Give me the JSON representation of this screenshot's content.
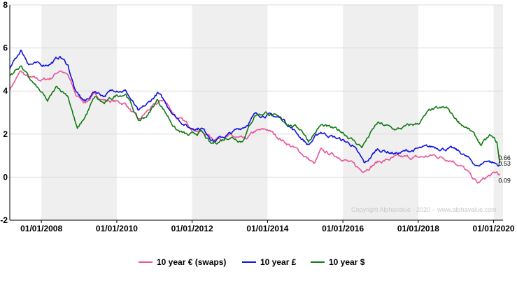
{
  "chart_data": {
    "type": "line",
    "title": "",
    "xlabel": "",
    "ylabel": "",
    "ylim": [
      -2,
      8
    ],
    "y_ticks": [
      "-2",
      "0",
      "2",
      "4",
      "6",
      "8"
    ],
    "x_tick_labels": [
      {
        "date": "2008-01-01",
        "label": "01/01/2008"
      },
      {
        "date": "2010-01-01",
        "label": "01/01/2010"
      },
      {
        "date": "2012-01-01",
        "label": "01/01/2012"
      },
      {
        "date": "2014-01-01",
        "label": "01/01/2014"
      },
      {
        "date": "2016-01-01",
        "label": "01/01/2016"
      },
      {
        "date": "2018-01-01",
        "label": "01/01/2018"
      },
      {
        "date": "2020-01-01",
        "label": "01/01/2020"
      }
    ],
    "xlim": [
      "2007-03-01",
      "2020-04-01"
    ],
    "shaded_bands": [
      [
        "2008-01-01",
        "2010-01-01"
      ],
      [
        "2012-01-01",
        "2014-01-01"
      ],
      [
        "2016-01-01",
        "2018-01-01"
      ],
      [
        "2020-01-01",
        "2020-04-01"
      ]
    ],
    "grid": true,
    "legend_position": "bottom",
    "credit": "Copyright Alphavalue - 2020 – www.alphavalue.com",
    "series": [
      {
        "name": "10 year € (swaps)",
        "color": "#e8559a",
        "end_label": "0.09",
        "points": [
          [
            "2007-03-01",
            4.1
          ],
          [
            "2007-06-15",
            4.9
          ],
          [
            "2007-09-01",
            4.6
          ],
          [
            "2008-01-01",
            4.5
          ],
          [
            "2008-04-01",
            4.6
          ],
          [
            "2008-07-01",
            5.0
          ],
          [
            "2008-09-15",
            4.7
          ],
          [
            "2008-12-01",
            3.8
          ],
          [
            "2009-03-01",
            3.5
          ],
          [
            "2009-06-01",
            3.8
          ],
          [
            "2009-09-01",
            3.6
          ],
          [
            "2010-01-01",
            3.5
          ],
          [
            "2010-04-01",
            3.4
          ],
          [
            "2010-08-01",
            2.6
          ],
          [
            "2010-11-01",
            3.1
          ],
          [
            "2011-04-01",
            3.6
          ],
          [
            "2011-08-01",
            2.8
          ],
          [
            "2011-12-01",
            2.4
          ],
          [
            "2012-04-01",
            2.1
          ],
          [
            "2012-08-01",
            1.8
          ],
          [
            "2013-01-01",
            1.9
          ],
          [
            "2013-06-01",
            1.7
          ],
          [
            "2013-09-01",
            2.1
          ],
          [
            "2014-01-01",
            2.2
          ],
          [
            "2014-06-01",
            1.7
          ],
          [
            "2014-12-01",
            1.1
          ],
          [
            "2015-04-01",
            0.6
          ],
          [
            "2015-06-01",
            1.2
          ],
          [
            "2016-01-01",
            0.9
          ],
          [
            "2016-07-01",
            0.3
          ],
          [
            "2016-12-01",
            0.7
          ],
          [
            "2017-06-01",
            0.9
          ],
          [
            "2018-01-01",
            0.9
          ],
          [
            "2018-06-01",
            1.0
          ],
          [
            "2018-12-01",
            0.8
          ],
          [
            "2019-03-01",
            0.5
          ],
          [
            "2019-08-01",
            -0.3
          ],
          [
            "2019-11-01",
            0.0
          ],
          [
            "2020-02-01",
            0.2
          ],
          [
            "2020-03-01",
            0.09
          ]
        ]
      },
      {
        "name": "10 year £",
        "color": "#1010e0",
        "end_label": "0.53",
        "points": [
          [
            "2007-03-01",
            5.0
          ],
          [
            "2007-06-15",
            5.9
          ],
          [
            "2007-09-01",
            5.3
          ],
          [
            "2008-01-01",
            5.2
          ],
          [
            "2008-04-01",
            5.3
          ],
          [
            "2008-07-01",
            5.6
          ],
          [
            "2008-09-15",
            5.2
          ],
          [
            "2008-12-01",
            3.9
          ],
          [
            "2009-03-01",
            3.5
          ],
          [
            "2009-06-01",
            4.0
          ],
          [
            "2009-09-01",
            3.8
          ],
          [
            "2010-01-01",
            4.1
          ],
          [
            "2010-04-01",
            4.0
          ],
          [
            "2010-08-01",
            3.0
          ],
          [
            "2010-11-01",
            3.4
          ],
          [
            "2011-02-01",
            3.9
          ],
          [
            "2011-08-01",
            2.8
          ],
          [
            "2011-12-01",
            2.3
          ],
          [
            "2012-04-01",
            2.3
          ],
          [
            "2012-08-01",
            1.7
          ],
          [
            "2013-01-01",
            2.0
          ],
          [
            "2013-06-01",
            2.4
          ],
          [
            "2013-09-01",
            2.9
          ],
          [
            "2014-01-01",
            2.9
          ],
          [
            "2014-06-01",
            2.7
          ],
          [
            "2014-12-01",
            1.8
          ],
          [
            "2015-02-01",
            1.5
          ],
          [
            "2015-06-01",
            2.1
          ],
          [
            "2016-01-01",
            1.7
          ],
          [
            "2016-04-01",
            1.5
          ],
          [
            "2016-08-01",
            0.6
          ],
          [
            "2016-12-01",
            1.3
          ],
          [
            "2017-06-01",
            1.1
          ],
          [
            "2018-01-01",
            1.3
          ],
          [
            "2018-06-01",
            1.4
          ],
          [
            "2018-12-01",
            1.3
          ],
          [
            "2019-03-01",
            1.1
          ],
          [
            "2019-08-01",
            0.5
          ],
          [
            "2019-11-01",
            0.8
          ],
          [
            "2020-02-01",
            0.6
          ],
          [
            "2020-03-01",
            0.53
          ]
        ]
      },
      {
        "name": "10 year $",
        "color": "#107a10",
        "end_label": "0.66",
        "points": [
          [
            "2007-03-01",
            4.7
          ],
          [
            "2007-06-15",
            5.2
          ],
          [
            "2007-09-01",
            4.6
          ],
          [
            "2008-01-01",
            3.9
          ],
          [
            "2008-03-01",
            3.5
          ],
          [
            "2008-06-01",
            4.2
          ],
          [
            "2008-09-15",
            3.8
          ],
          [
            "2008-12-15",
            2.2
          ],
          [
            "2009-03-01",
            2.8
          ],
          [
            "2009-06-01",
            3.7
          ],
          [
            "2009-09-01",
            3.4
          ],
          [
            "2010-01-01",
            3.8
          ],
          [
            "2010-04-01",
            3.9
          ],
          [
            "2010-08-01",
            2.6
          ],
          [
            "2010-11-01",
            2.9
          ],
          [
            "2011-02-01",
            3.6
          ],
          [
            "2011-08-01",
            2.2
          ],
          [
            "2011-12-01",
            1.9
          ],
          [
            "2012-04-01",
            2.1
          ],
          [
            "2012-07-01",
            1.5
          ],
          [
            "2013-01-01",
            1.9
          ],
          [
            "2013-05-01",
            1.7
          ],
          [
            "2013-09-01",
            2.9
          ],
          [
            "2014-01-01",
            3.0
          ],
          [
            "2014-06-01",
            2.6
          ],
          [
            "2014-12-01",
            2.2
          ],
          [
            "2015-02-01",
            1.7
          ],
          [
            "2015-06-01",
            2.4
          ],
          [
            "2016-01-01",
            2.1
          ],
          [
            "2016-07-01",
            1.4
          ],
          [
            "2016-12-01",
            2.5
          ],
          [
            "2017-06-01",
            2.2
          ],
          [
            "2018-01-01",
            2.5
          ],
          [
            "2018-05-01",
            3.1
          ],
          [
            "2018-10-01",
            3.2
          ],
          [
            "2019-01-01",
            2.7
          ],
          [
            "2019-06-01",
            2.1
          ],
          [
            "2019-09-01",
            1.5
          ],
          [
            "2019-12-01",
            1.9
          ],
          [
            "2020-02-01",
            1.6
          ],
          [
            "2020-03-01",
            0.66
          ]
        ]
      }
    ]
  }
}
